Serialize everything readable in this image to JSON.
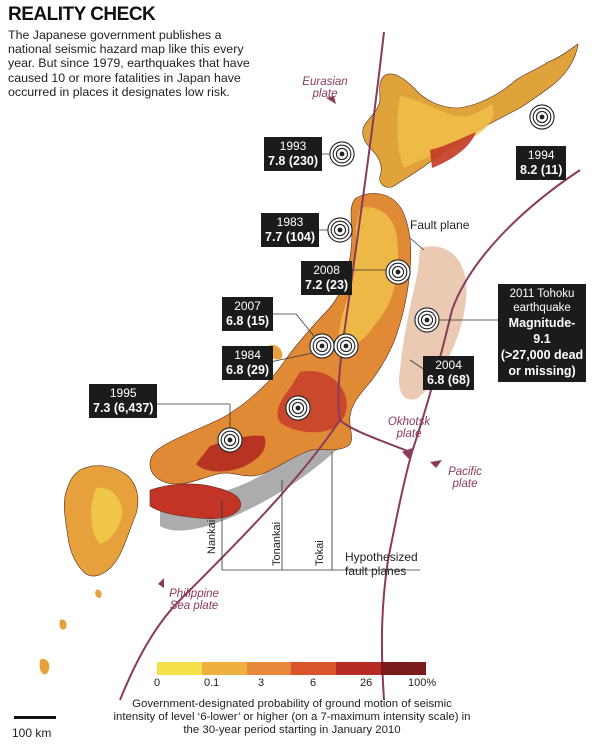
{
  "title": "REALITY CHECK",
  "intro": "The Japanese government publishes a national seismic hazard map like this every year. But since 1979, earthquakes that have caused 10 or more fatalities in Japan have occurred in places it designates low risk.",
  "earthquakes": [
    {
      "year": "1993",
      "detail": "7.8 (230)"
    },
    {
      "year": "1994",
      "detail": "8.2 (11)"
    },
    {
      "year": "1983",
      "detail": "7.7 (104)"
    },
    {
      "year": "2008",
      "detail": "7.2 (23)"
    },
    {
      "year": "2007",
      "detail": "6.8 (15)"
    },
    {
      "year": "1984",
      "detail": "6.8 (29)"
    },
    {
      "year": "2004",
      "detail": "6.8 (68)"
    },
    {
      "year": "1995",
      "detail": "7.3 (6,437)"
    }
  ],
  "tohoku": {
    "line1": "2011 Tohoku",
    "line2": "earthquake",
    "line3": "Magnitude-9.1",
    "line4": "(>27,000 dead",
    "line5": "or missing)"
  },
  "plates": {
    "eurasian": "Eurasian plate",
    "okhotsk": "Okhotsk plate",
    "pacific": "Pacific plate",
    "philippine": "Philippine Sea plate"
  },
  "labels": {
    "fault_plane": "Fault plane",
    "hypothesized": "Hypothesized fault planes",
    "nankai": "Nankai",
    "tonankai": "Tonankai",
    "tokai": "Tokai",
    "scale": "100 km"
  },
  "legend": {
    "colors": [
      "#f3e04a",
      "#f0b040",
      "#e8883a",
      "#d9542b",
      "#b52a22",
      "#7a1a1c"
    ],
    "ticks": [
      "0",
      "0.1",
      "3",
      "6",
      "26",
      "100%"
    ],
    "caption": "Government-designated probability of ground motion of seismic intensity of level ‘6-lower’ or higher (on a 7-maximum intensity scale) in the 30-year period starting in January 2010"
  }
}
